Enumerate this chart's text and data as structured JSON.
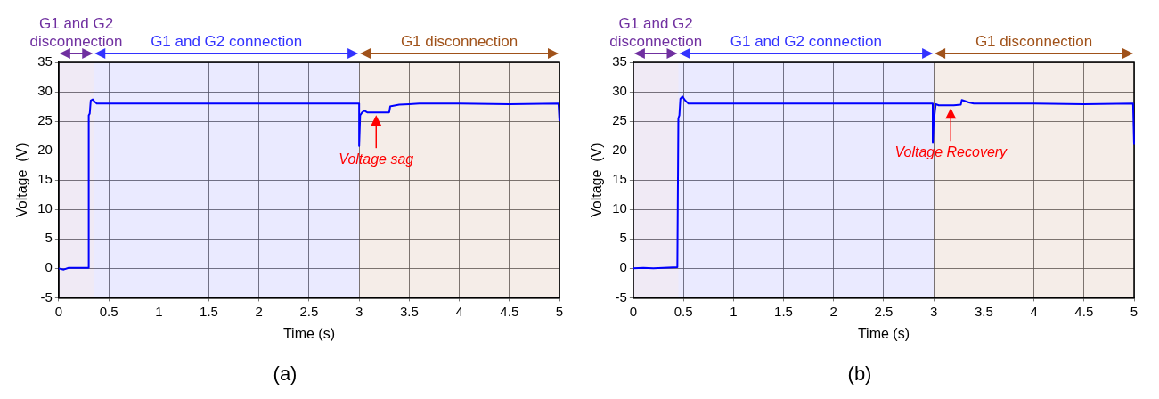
{
  "chart_data": [
    {
      "type": "line",
      "title": "(a)",
      "xlabel": "Time (s)",
      "ylabel": "Voltage  (V)",
      "xlim": [
        0,
        5
      ],
      "xticks": [
        0,
        0.5,
        1,
        1.5,
        2,
        2.5,
        3,
        3.5,
        4,
        4.5,
        5
      ],
      "ylim": [
        -5,
        35
      ],
      "yticks": [
        -5,
        0,
        5,
        10,
        15,
        20,
        25,
        30,
        35
      ],
      "grid": true,
      "legend": false,
      "marker": "none",
      "line_style": "solid",
      "series": [
        {
          "color": "#0000ff",
          "x": [
            0,
            0.05,
            0.1,
            0.2,
            0.3,
            0.3,
            0.31,
            0.32,
            0.34,
            0.36,
            0.38,
            0.5,
            1,
            1.5,
            2,
            2.5,
            2.99,
            3.0,
            3.0,
            3.01,
            3.03,
            3.05,
            3.08,
            3.1,
            3.2,
            3.3,
            3.31,
            3.33,
            3.4,
            3.5,
            3.6,
            4,
            4.5,
            4.99,
            5.0
          ],
          "values": [
            0,
            -0.2,
            0.1,
            0.1,
            0.1,
            26,
            26.3,
            28.5,
            28.7,
            28.3,
            28,
            28,
            28,
            28,
            28,
            28,
            28,
            28,
            20.8,
            26,
            26.5,
            26.8,
            26.5,
            26.5,
            26.5,
            26.5,
            27.5,
            27.6,
            27.8,
            27.9,
            28,
            28,
            27.9,
            28,
            25
          ]
        }
      ],
      "bands": [
        {
          "axis": "x",
          "from": 0,
          "to": 0.35,
          "label": "G1 and G2 disconnection",
          "color": "#7030a0"
        },
        {
          "axis": "x",
          "from": 0.35,
          "to": 3,
          "label": "G1 and G2 connection",
          "color": "#3333ff"
        },
        {
          "axis": "x",
          "from": 3,
          "to": 5,
          "label": "G1 disconnection",
          "color": "#a0521a"
        }
      ],
      "annotations": [
        {
          "text": "Voltage sag",
          "x": 3.17,
          "y": 26.5
        }
      ]
    },
    {
      "type": "line",
      "title": "(b)",
      "xlabel": "Time (s)",
      "ylabel": "Voltage  (V)",
      "xlim": [
        0,
        5
      ],
      "xticks": [
        0,
        0.5,
        1,
        1.5,
        2,
        2.5,
        3,
        3.5,
        4,
        4.5,
        5
      ],
      "ylim": [
        -5,
        35
      ],
      "yticks": [
        -5,
        0,
        5,
        10,
        15,
        20,
        25,
        30,
        35
      ],
      "grid": true,
      "legend": false,
      "marker": "none",
      "line_style": "solid",
      "series": [
        {
          "color": "#0000ff",
          "x": [
            0,
            0.1,
            0.2,
            0.3,
            0.44,
            0.45,
            0.46,
            0.47,
            0.49,
            0.52,
            0.55,
            1,
            1.5,
            2,
            2.5,
            2.98,
            2.99,
            2.99,
            3.0,
            3.02,
            3.05,
            3.2,
            3.27,
            3.28,
            3.3,
            3.35,
            3.4,
            3.6,
            4,
            4.5,
            4.99,
            5.0
          ],
          "values": [
            0,
            0.1,
            0,
            0.1,
            0.2,
            25.5,
            26,
            28.8,
            29.2,
            28.5,
            28,
            28,
            28,
            28,
            28,
            28,
            28,
            21.3,
            25,
            27.9,
            27.7,
            27.7,
            27.8,
            28.6,
            28.5,
            28.2,
            28,
            28,
            28,
            27.9,
            28,
            21
          ]
        }
      ],
      "bands": [
        {
          "axis": "x",
          "from": 0,
          "to": 0.45,
          "label": "G1 and G2 disconnection",
          "color": "#7030a0"
        },
        {
          "axis": "x",
          "from": 0.45,
          "to": 3,
          "label": "G1 and G2 connection",
          "color": "#3333ff"
        },
        {
          "axis": "x",
          "from": 3,
          "to": 5,
          "label": "G1 disconnection",
          "color": "#a0521a"
        }
      ],
      "annotations": [
        {
          "text": "Voltage Recovery",
          "x": 3.17,
          "y": 27.7
        }
      ]
    }
  ]
}
